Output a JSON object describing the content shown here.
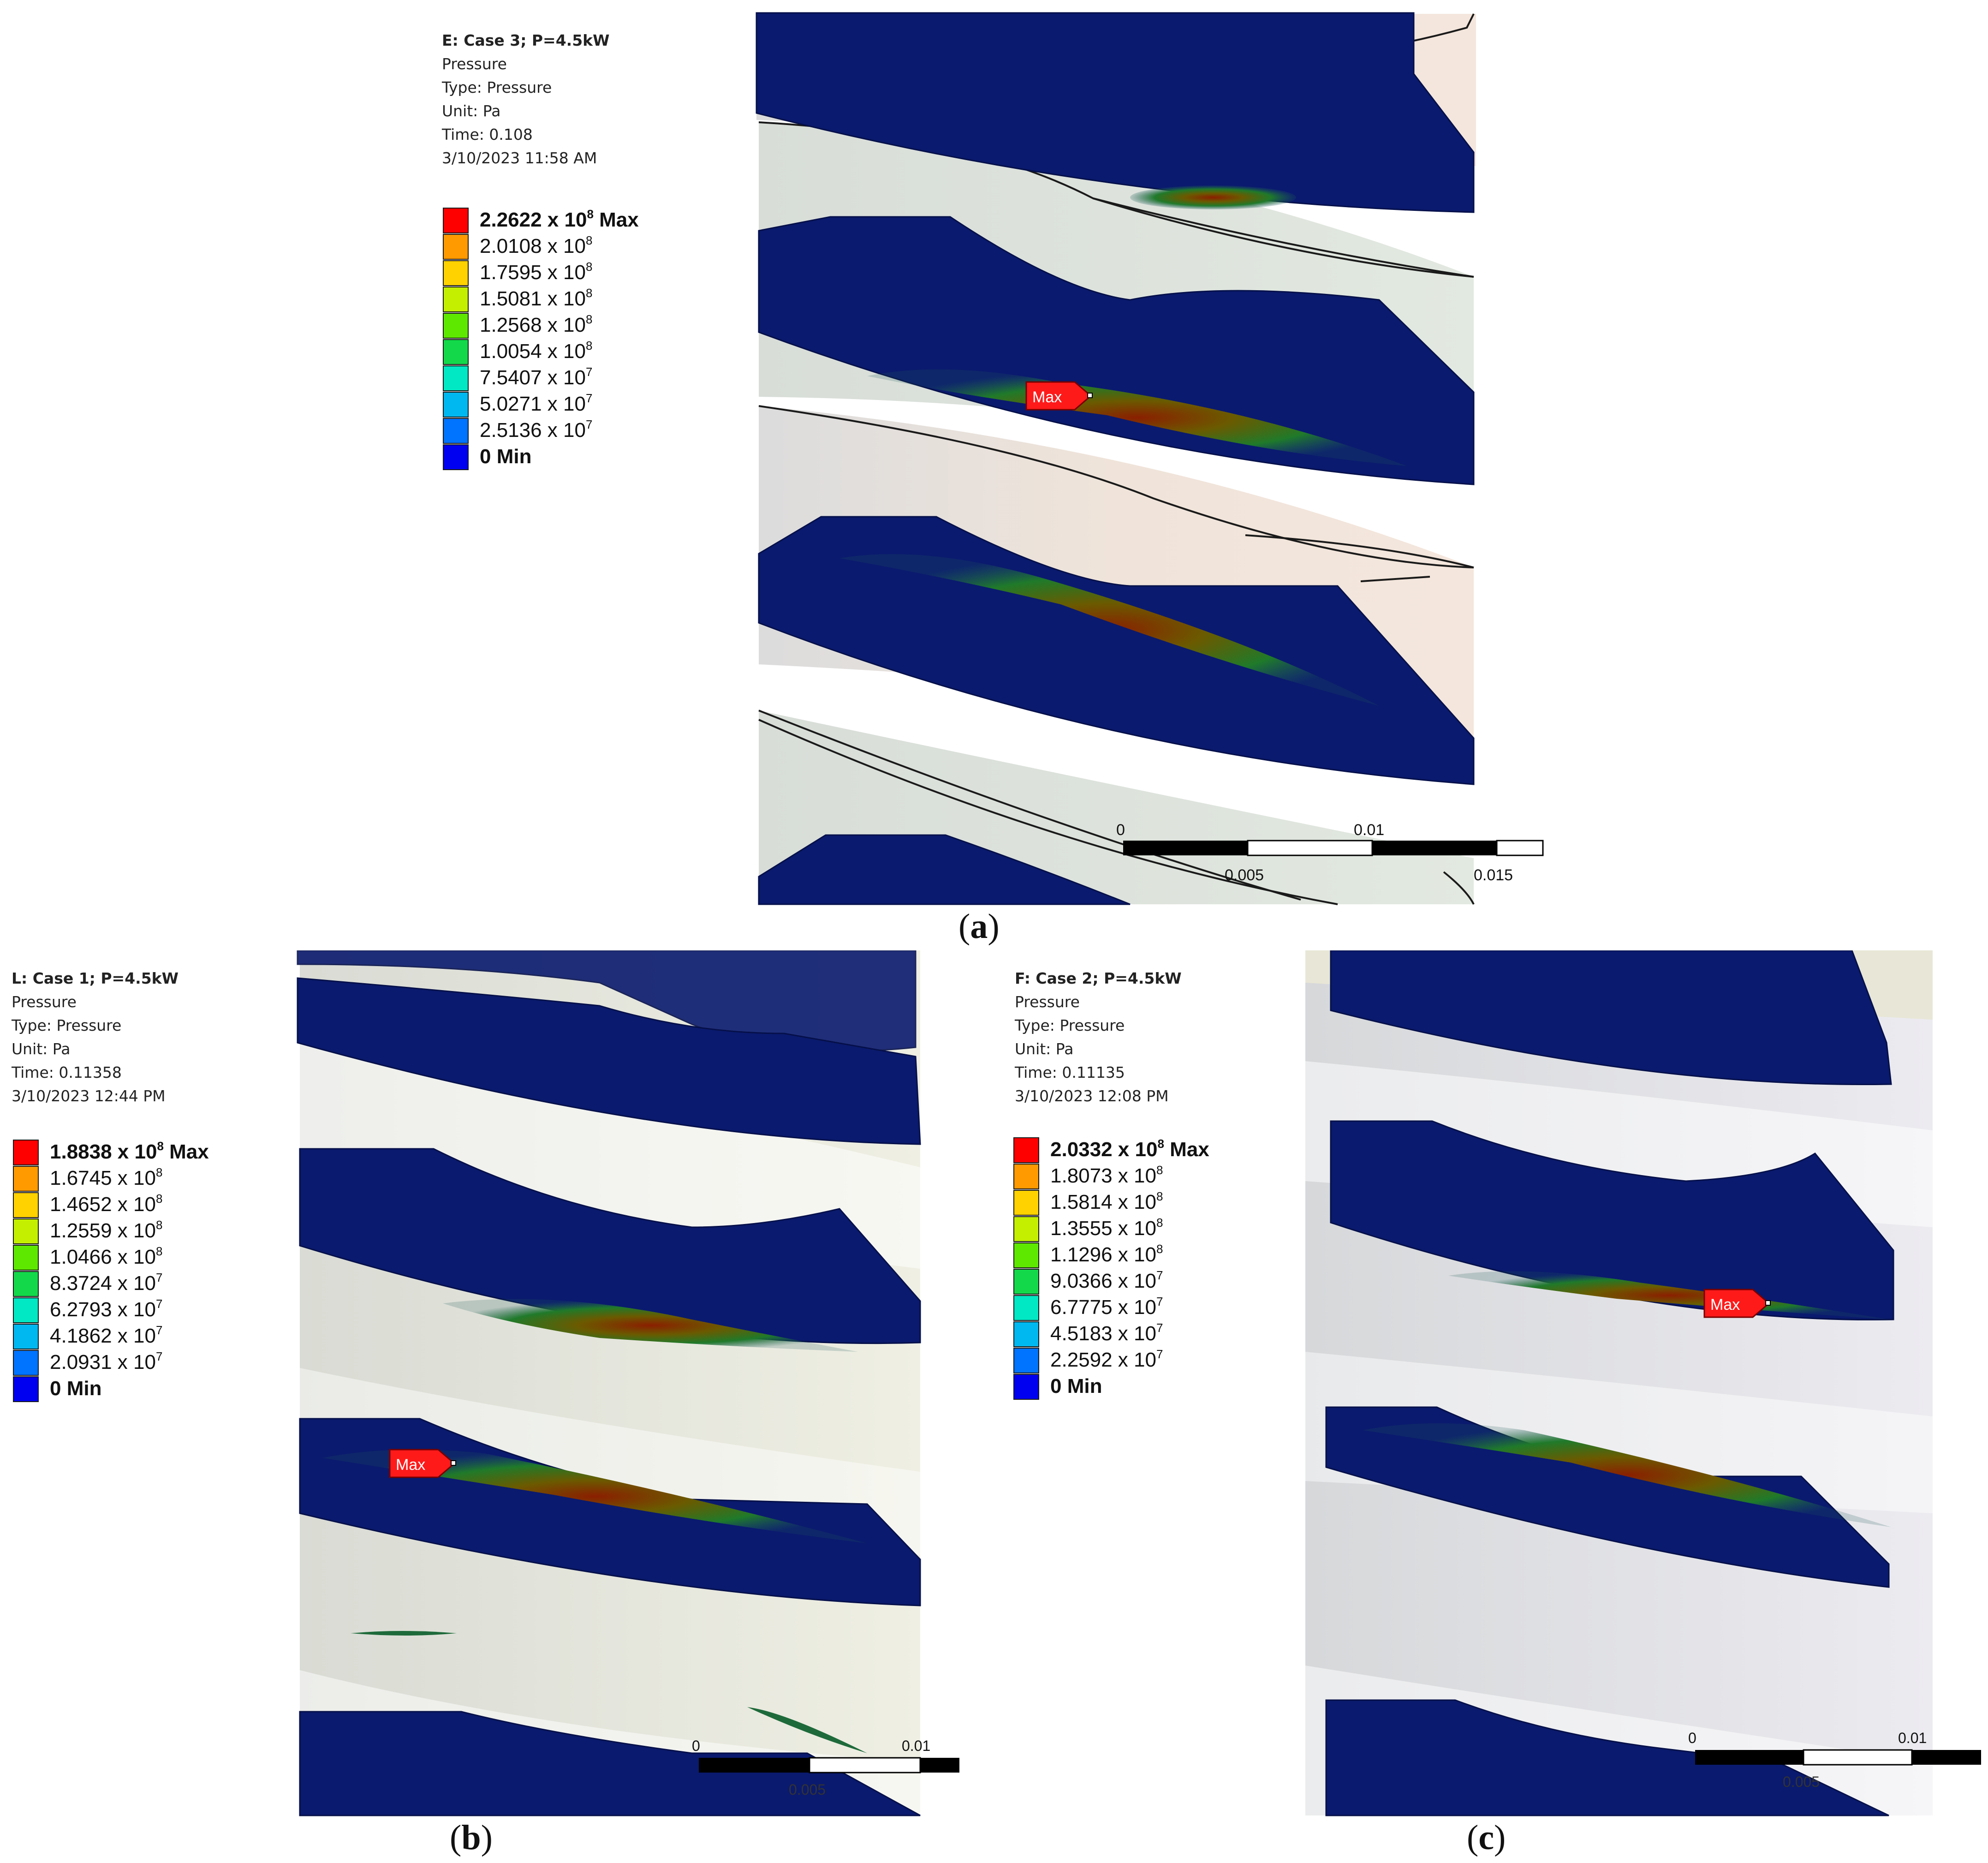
{
  "panels": [
    {
      "id": "a",
      "caption_open": "(",
      "caption_letter": "a",
      "caption_close": ")",
      "info": {
        "title": "E: Case 3; P=4.5kW",
        "quantity": "Pressure",
        "type": "Type: Pressure",
        "unit": "Unit: Pa",
        "time": "Time: 0.108",
        "date": "3/10/2023 11:58 AM"
      },
      "legend": [
        {
          "mant": "2.2622 x 10",
          "exp": "8",
          "suffix": " Max",
          "color": "#ff0000"
        },
        {
          "mant": "2.0108 x 10",
          "exp": "8",
          "suffix": "",
          "color": "#ff9a00"
        },
        {
          "mant": "1.7595 x 10",
          "exp": "8",
          "suffix": "",
          "color": "#ffd200"
        },
        {
          "mant": "1.5081 x 10",
          "exp": "8",
          "suffix": "",
          "color": "#c4f000"
        },
        {
          "mant": "1.2568 x 10",
          "exp": "8",
          "suffix": "",
          "color": "#5ee800"
        },
        {
          "mant": "1.0054 x 10",
          "exp": "8",
          "suffix": "",
          "color": "#13d94a"
        },
        {
          "mant": "7.5407 x 10",
          "exp": "7",
          "suffix": "",
          "color": "#00e8c4"
        },
        {
          "mant": "5.0271 x 10",
          "exp": "7",
          "suffix": "",
          "color": "#00b8f0"
        },
        {
          "mant": "2.5136 x 10",
          "exp": "7",
          "suffix": "",
          "color": "#0073ff"
        },
        {
          "mant": "0",
          "exp": "",
          "suffix": " Min",
          "color": "#0000f0"
        }
      ],
      "probe_label": "Max",
      "scale": {
        "top_left": "0",
        "top_right": "0.01",
        "bottom_left": "0.005",
        "bottom_right": "0.015"
      }
    },
    {
      "id": "b",
      "caption_open": "(",
      "caption_letter": "b",
      "caption_close": ")",
      "info": {
        "title": "L: Case 1; P=4.5kW",
        "quantity": "Pressure",
        "type": "Type: Pressure",
        "unit": "Unit: Pa",
        "time": "Time: 0.11358",
        "date": "3/10/2023 12:44 PM"
      },
      "legend": [
        {
          "mant": "1.8838 x 10",
          "exp": "8",
          "suffix": " Max",
          "color": "#ff0000"
        },
        {
          "mant": "1.6745 x 10",
          "exp": "8",
          "suffix": "",
          "color": "#ff9a00"
        },
        {
          "mant": "1.4652 x 10",
          "exp": "8",
          "suffix": "",
          "color": "#ffd200"
        },
        {
          "mant": "1.2559 x 10",
          "exp": "8",
          "suffix": "",
          "color": "#c4f000"
        },
        {
          "mant": "1.0466 x 10",
          "exp": "8",
          "suffix": "",
          "color": "#5ee800"
        },
        {
          "mant": "8.3724 x 10",
          "exp": "7",
          "suffix": "",
          "color": "#13d94a"
        },
        {
          "mant": "6.2793 x 10",
          "exp": "7",
          "suffix": "",
          "color": "#00e8c4"
        },
        {
          "mant": "4.1862 x 10",
          "exp": "7",
          "suffix": "",
          "color": "#00b8f0"
        },
        {
          "mant": "2.0931 x 10",
          "exp": "7",
          "suffix": "",
          "color": "#0073ff"
        },
        {
          "mant": "0",
          "exp": "",
          "suffix": " Min",
          "color": "#0000f0"
        }
      ],
      "probe_label": "Max",
      "scale": {
        "top_left": "0",
        "top_right": "0.01",
        "bottom_left": "0.005",
        "bottom_right": ""
      }
    },
    {
      "id": "c",
      "caption_open": "(",
      "caption_letter": "c",
      "caption_close": ")",
      "info": {
        "title": "F: Case 2; P=4.5kW",
        "quantity": "Pressure",
        "type": "Type: Pressure",
        "unit": "Unit: Pa",
        "time": "Time: 0.11135",
        "date": "3/10/2023 12:08 PM"
      },
      "legend": [
        {
          "mant": "2.0332 x 10",
          "exp": "8",
          "suffix": " Max",
          "color": "#ff0000"
        },
        {
          "mant": "1.8073 x 10",
          "exp": "8",
          "suffix": "",
          "color": "#ff9a00"
        },
        {
          "mant": "1.5814 x 10",
          "exp": "8",
          "suffix": "",
          "color": "#ffd200"
        },
        {
          "mant": "1.3555 x 10",
          "exp": "8",
          "suffix": "",
          "color": "#c4f000"
        },
        {
          "mant": "1.1296 x 10",
          "exp": "8",
          "suffix": "",
          "color": "#5ee800"
        },
        {
          "mant": "9.0366 x 10",
          "exp": "7",
          "suffix": "",
          "color": "#13d94a"
        },
        {
          "mant": "6.7775 x 10",
          "exp": "7",
          "suffix": "",
          "color": "#00e8c4"
        },
        {
          "mant": "4.5183 x 10",
          "exp": "7",
          "suffix": "",
          "color": "#00b8f0"
        },
        {
          "mant": "2.2592 x 10",
          "exp": "7",
          "suffix": "",
          "color": "#0073ff"
        },
        {
          "mant": "0",
          "exp": "",
          "suffix": " Min",
          "color": "#0000f0"
        }
      ],
      "probe_label": "Max",
      "scale": {
        "top_left": "0",
        "top_right": "0.01",
        "bottom_left": "0.005",
        "bottom_right": ""
      }
    }
  ],
  "colors": {
    "contact_blue": "#0a1a6e",
    "contact_edge": "#05104a",
    "probe_red": "#ff1a1a",
    "part_a": "#f2e3d9",
    "part_b": "#e6ece3",
    "part_c": "#e8e8ee"
  }
}
